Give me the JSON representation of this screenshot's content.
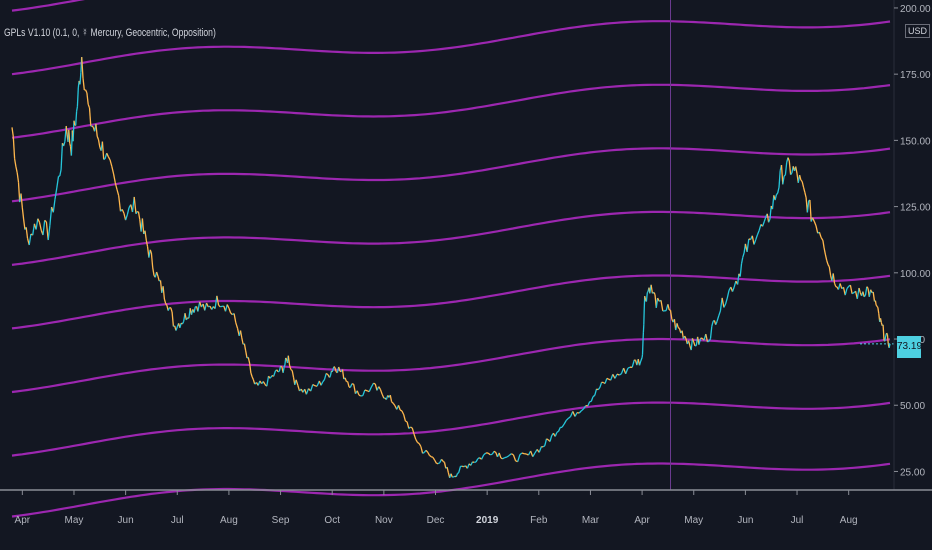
{
  "indicator": {
    "label": "GPLs V1.10 (0.1, 0, ☿ Mercury, Geocentric, Opposition)"
  },
  "price_axis": {
    "currency": "USD",
    "current_price": "73.19"
  },
  "colors": {
    "background": "#131722",
    "gpl_line": "#9c27b0",
    "candle_up": "#26c6da",
    "candle_down": "#ffb74d",
    "price_badge": "#4dd0e1"
  },
  "chart_data": {
    "type": "line",
    "y_axis": {
      "ticks": [
        "25.00",
        "50.00",
        "75.00",
        "100.00",
        "125.00",
        "150.00",
        "175.00",
        "200.00"
      ],
      "ylim": [
        18,
        203
      ]
    },
    "x_axis": {
      "ticks": [
        {
          "label": "Apr",
          "month": 0
        },
        {
          "label": "May",
          "month": 1
        },
        {
          "label": "Jun",
          "month": 2
        },
        {
          "label": "Jul",
          "month": 3
        },
        {
          "label": "Aug",
          "month": 4
        },
        {
          "label": "Sep",
          "month": 5
        },
        {
          "label": "Oct",
          "month": 6
        },
        {
          "label": "Nov",
          "month": 7
        },
        {
          "label": "Dec",
          "month": 8
        },
        {
          "label": "2019",
          "month": 9,
          "bold": true
        },
        {
          "label": "Feb",
          "month": 10
        },
        {
          "label": "Mar",
          "month": 11
        },
        {
          "label": "Apr",
          "month": 12
        },
        {
          "label": "May",
          "month": 13
        },
        {
          "label": "Jun",
          "month": 14
        },
        {
          "label": "Jul",
          "month": 15
        },
        {
          "label": "Aug",
          "month": 16
        }
      ],
      "xlim": [
        -0.2,
        16.8
      ]
    },
    "vertical_marker_month": 12.55,
    "series": [
      {
        "kind": "price",
        "points": [
          [
            -0.2,
            155
          ],
          [
            -0.05,
            130
          ],
          [
            0.1,
            112
          ],
          [
            0.3,
            120
          ],
          [
            0.5,
            115
          ],
          [
            0.7,
            135
          ],
          [
            0.85,
            155
          ],
          [
            0.95,
            148
          ],
          [
            1.05,
            160
          ],
          [
            1.15,
            182
          ],
          [
            1.3,
            158
          ],
          [
            1.45,
            152
          ],
          [
            1.6,
            145
          ],
          [
            1.8,
            132
          ],
          [
            2.0,
            122
          ],
          [
            2.2,
            126
          ],
          [
            2.35,
            115
          ],
          [
            2.5,
            105
          ],
          [
            2.65,
            96
          ],
          [
            2.8,
            90
          ],
          [
            2.95,
            80
          ],
          [
            3.1,
            82
          ],
          [
            3.25,
            86
          ],
          [
            3.4,
            88
          ],
          [
            3.6,
            86
          ],
          [
            3.8,
            90
          ],
          [
            4.0,
            87
          ],
          [
            4.2,
            78
          ],
          [
            4.35,
            68
          ],
          [
            4.5,
            57
          ],
          [
            4.7,
            58
          ],
          [
            4.9,
            62
          ],
          [
            5.05,
            64
          ],
          [
            5.15,
            68
          ],
          [
            5.3,
            58
          ],
          [
            5.5,
            55
          ],
          [
            5.75,
            58
          ],
          [
            5.95,
            62
          ],
          [
            6.05,
            65
          ],
          [
            6.2,
            62
          ],
          [
            6.35,
            58
          ],
          [
            6.55,
            54
          ],
          [
            6.8,
            57
          ],
          [
            7.0,
            54
          ],
          [
            7.15,
            52
          ],
          [
            7.35,
            47
          ],
          [
            7.55,
            40
          ],
          [
            7.75,
            33
          ],
          [
            7.95,
            30
          ],
          [
            8.15,
            28
          ],
          [
            8.3,
            23
          ],
          [
            8.45,
            25
          ],
          [
            8.65,
            28
          ],
          [
            8.85,
            30
          ],
          [
            9.1,
            33
          ],
          [
            9.3,
            31
          ],
          [
            9.55,
            30
          ],
          [
            9.8,
            31
          ],
          [
            10.05,
            34
          ],
          [
            10.25,
            38
          ],
          [
            10.45,
            43
          ],
          [
            10.7,
            47
          ],
          [
            10.95,
            51
          ],
          [
            11.15,
            56
          ],
          [
            11.35,
            60
          ],
          [
            11.6,
            62
          ],
          [
            11.85,
            66
          ],
          [
            12.0,
            67
          ],
          [
            12.05,
            90
          ],
          [
            12.15,
            95
          ],
          [
            12.3,
            88
          ],
          [
            12.5,
            86
          ],
          [
            12.65,
            80
          ],
          [
            12.8,
            77
          ],
          [
            12.95,
            73
          ],
          [
            13.1,
            74
          ],
          [
            13.3,
            76
          ],
          [
            13.45,
            84
          ],
          [
            13.65,
            92
          ],
          [
            13.85,
            98
          ],
          [
            14.0,
            108
          ],
          [
            14.2,
            115
          ],
          [
            14.4,
            118
          ],
          [
            14.55,
            127
          ],
          [
            14.7,
            137
          ],
          [
            14.85,
            140
          ],
          [
            15.0,
            137
          ],
          [
            15.15,
            129
          ],
          [
            15.3,
            121
          ],
          [
            15.5,
            114
          ],
          [
            15.65,
            100
          ],
          [
            15.8,
            96
          ],
          [
            16.0,
            93
          ],
          [
            16.2,
            92
          ],
          [
            16.35,
            94
          ],
          [
            16.5,
            90
          ],
          [
            16.6,
            82
          ],
          [
            16.7,
            76
          ],
          [
            16.8,
            73.19
          ]
        ]
      },
      {
        "kind": "gpl",
        "base": 11,
        "slope": 1.15
      },
      {
        "kind": "gpl",
        "base": 34,
        "slope": 1.15
      },
      {
        "kind": "gpl",
        "base": 58,
        "slope": 1.15
      },
      {
        "kind": "gpl",
        "base": 82,
        "slope": 1.15
      },
      {
        "kind": "gpl",
        "base": 106,
        "slope": 1.15
      },
      {
        "kind": "gpl",
        "base": 130,
        "slope": 1.15
      },
      {
        "kind": "gpl",
        "base": 154,
        "slope": 1.15
      },
      {
        "kind": "gpl",
        "base": 178,
        "slope": 1.15
      },
      {
        "kind": "gpl",
        "base": 202,
        "slope": 1.15
      }
    ]
  }
}
